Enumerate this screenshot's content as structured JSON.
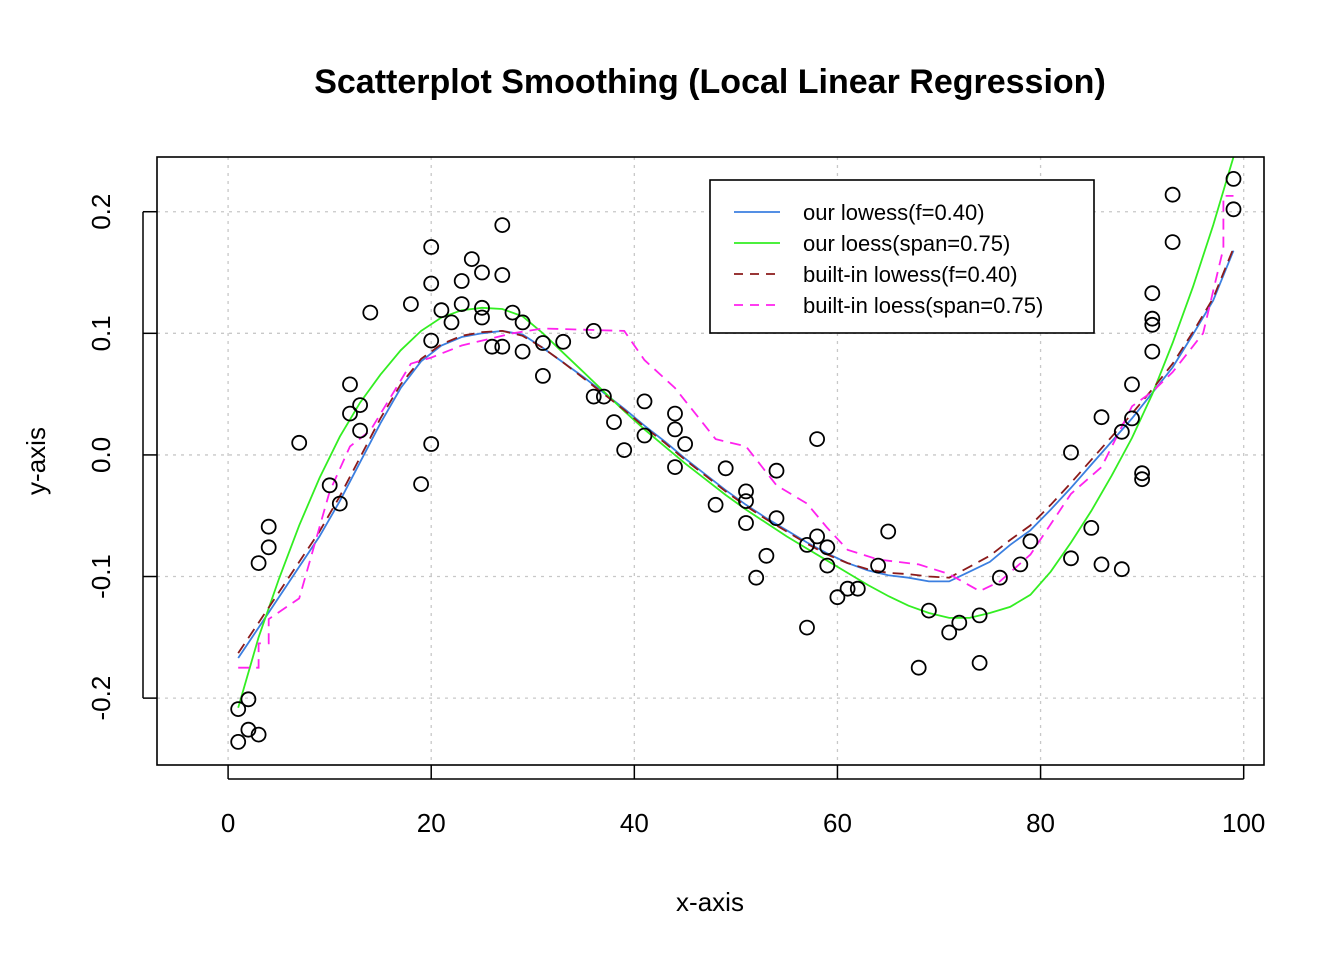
{
  "chart_data": {
    "type": "scatter",
    "title": "Scatterplot Smoothing (Local Linear Regression)",
    "xlabel": "x-axis",
    "ylabel": "y-axis",
    "xlim": [
      -7,
      102
    ],
    "ylim": [
      -0.255,
      0.245
    ],
    "xticks": [
      0,
      20,
      40,
      60,
      80,
      100
    ],
    "xtick_labels": [
      "0",
      "20",
      "40",
      "60",
      "80",
      "100"
    ],
    "yticks": [
      -0.2,
      -0.1,
      0.0,
      0.1,
      0.2
    ],
    "ytick_labels": [
      "-0.2",
      "-0.1",
      "0.0",
      "0.1",
      "0.2"
    ],
    "grid": true,
    "legend_position": "top-right",
    "points": [
      {
        "x": 1,
        "y": -0.209
      },
      {
        "x": 1,
        "y": -0.236
      },
      {
        "x": 2,
        "y": -0.201
      },
      {
        "x": 2,
        "y": -0.226
      },
      {
        "x": 3,
        "y": -0.23
      },
      {
        "x": 3,
        "y": -0.089
      },
      {
        "x": 4,
        "y": -0.059
      },
      {
        "x": 4,
        "y": -0.076
      },
      {
        "x": 7,
        "y": 0.01
      },
      {
        "x": 10,
        "y": -0.025
      },
      {
        "x": 11,
        "y": -0.04
      },
      {
        "x": 12,
        "y": 0.058
      },
      {
        "x": 12,
        "y": 0.034
      },
      {
        "x": 13,
        "y": 0.041
      },
      {
        "x": 13,
        "y": 0.02
      },
      {
        "x": 14,
        "y": 0.117
      },
      {
        "x": 18,
        "y": 0.124
      },
      {
        "x": 19,
        "y": -0.024
      },
      {
        "x": 20,
        "y": 0.171
      },
      {
        "x": 20,
        "y": 0.141
      },
      {
        "x": 20,
        "y": 0.094
      },
      {
        "x": 20,
        "y": 0.009
      },
      {
        "x": 21,
        "y": 0.119
      },
      {
        "x": 22,
        "y": 0.109
      },
      {
        "x": 23,
        "y": 0.143
      },
      {
        "x": 23,
        "y": 0.124
      },
      {
        "x": 24,
        "y": 0.161
      },
      {
        "x": 25,
        "y": 0.15
      },
      {
        "x": 25,
        "y": 0.121
      },
      {
        "x": 25,
        "y": 0.113
      },
      {
        "x": 26,
        "y": 0.089
      },
      {
        "x": 27,
        "y": 0.189
      },
      {
        "x": 27,
        "y": 0.148
      },
      {
        "x": 27,
        "y": 0.089
      },
      {
        "x": 28,
        "y": 0.117
      },
      {
        "x": 29,
        "y": 0.109
      },
      {
        "x": 29,
        "y": 0.085
      },
      {
        "x": 31,
        "y": 0.092
      },
      {
        "x": 31,
        "y": 0.065
      },
      {
        "x": 33,
        "y": 0.093
      },
      {
        "x": 36,
        "y": 0.102
      },
      {
        "x": 36,
        "y": 0.048
      },
      {
        "x": 37,
        "y": 0.048
      },
      {
        "x": 38,
        "y": 0.027
      },
      {
        "x": 39,
        "y": 0.004
      },
      {
        "x": 41,
        "y": 0.044
      },
      {
        "x": 41,
        "y": 0.016
      },
      {
        "x": 44,
        "y": 0.034
      },
      {
        "x": 44,
        "y": 0.021
      },
      {
        "x": 44,
        "y": -0.01
      },
      {
        "x": 45,
        "y": 0.009
      },
      {
        "x": 48,
        "y": -0.041
      },
      {
        "x": 49,
        "y": -0.011
      },
      {
        "x": 51,
        "y": -0.03
      },
      {
        "x": 51,
        "y": -0.038
      },
      {
        "x": 51,
        "y": -0.056
      },
      {
        "x": 52,
        "y": -0.101
      },
      {
        "x": 53,
        "y": -0.083
      },
      {
        "x": 54,
        "y": -0.013
      },
      {
        "x": 54,
        "y": -0.052
      },
      {
        "x": 57,
        "y": -0.074
      },
      {
        "x": 57,
        "y": -0.142
      },
      {
        "x": 58,
        "y": 0.013
      },
      {
        "x": 58,
        "y": -0.067
      },
      {
        "x": 59,
        "y": -0.076
      },
      {
        "x": 59,
        "y": -0.091
      },
      {
        "x": 60,
        "y": -0.117
      },
      {
        "x": 61,
        "y": -0.11
      },
      {
        "x": 62,
        "y": -0.11
      },
      {
        "x": 64,
        "y": -0.091
      },
      {
        "x": 65,
        "y": -0.063
      },
      {
        "x": 68,
        "y": -0.175
      },
      {
        "x": 69,
        "y": -0.128
      },
      {
        "x": 71,
        "y": -0.146
      },
      {
        "x": 72,
        "y": -0.138
      },
      {
        "x": 74,
        "y": -0.132
      },
      {
        "x": 74,
        "y": -0.171
      },
      {
        "x": 76,
        "y": -0.101
      },
      {
        "x": 78,
        "y": -0.09
      },
      {
        "x": 79,
        "y": -0.071
      },
      {
        "x": 83,
        "y": 0.002
      },
      {
        "x": 83,
        "y": -0.085
      },
      {
        "x": 85,
        "y": -0.06
      },
      {
        "x": 86,
        "y": 0.031
      },
      {
        "x": 86,
        "y": -0.09
      },
      {
        "x": 88,
        "y": 0.019
      },
      {
        "x": 88,
        "y": -0.094
      },
      {
        "x": 89,
        "y": 0.058
      },
      {
        "x": 89,
        "y": 0.03
      },
      {
        "x": 90,
        "y": -0.015
      },
      {
        "x": 90,
        "y": -0.02
      },
      {
        "x": 91,
        "y": 0.133
      },
      {
        "x": 91,
        "y": 0.112
      },
      {
        "x": 91,
        "y": 0.107
      },
      {
        "x": 91,
        "y": 0.085
      },
      {
        "x": 93,
        "y": 0.214
      },
      {
        "x": 93,
        "y": 0.175
      },
      {
        "x": 99,
        "y": 0.227
      },
      {
        "x": 99,
        "y": 0.202
      }
    ],
    "series": [
      {
        "name": "our lowess(f=0.40)",
        "color": "#3b7fe0",
        "dash": "solid",
        "x": [
          1,
          3,
          5,
          7,
          9,
          11,
          13,
          15,
          17,
          19,
          21,
          23,
          25,
          27,
          29,
          31,
          33,
          35,
          37,
          39,
          41,
          43,
          45,
          47,
          49,
          51,
          53,
          55,
          57,
          59,
          61,
          63,
          65,
          67,
          69,
          71,
          73,
          75,
          77,
          79,
          81,
          83,
          85,
          87,
          89,
          91,
          93,
          95,
          97,
          99
        ],
        "y": [
          -0.167,
          -0.142,
          -0.117,
          -0.092,
          -0.067,
          -0.038,
          -0.006,
          0.026,
          0.055,
          0.077,
          0.09,
          0.097,
          0.1,
          0.102,
          0.099,
          0.088,
          0.076,
          0.064,
          0.051,
          0.038,
          0.024,
          0.011,
          -0.003,
          -0.016,
          -0.029,
          -0.041,
          -0.052,
          -0.062,
          -0.072,
          -0.081,
          -0.089,
          -0.095,
          -0.099,
          -0.101,
          -0.104,
          -0.104,
          -0.096,
          -0.088,
          -0.074,
          -0.062,
          -0.045,
          -0.027,
          -0.008,
          0.011,
          0.03,
          0.051,
          0.072,
          0.099,
          0.127,
          0.168
        ]
      },
      {
        "name": "our loess(span=0.75)",
        "color": "#33ee22",
        "dash": "solid",
        "x": [
          1,
          3,
          5,
          7,
          9,
          11,
          13,
          15,
          17,
          19,
          21,
          23,
          25,
          27,
          29,
          31,
          33,
          35,
          37,
          39,
          41,
          43,
          45,
          47,
          49,
          51,
          53,
          55,
          57,
          59,
          61,
          63,
          65,
          67,
          69,
          71,
          73,
          75,
          77,
          79,
          81,
          83,
          85,
          87,
          89,
          91,
          93,
          95,
          97,
          99
        ],
        "y": [
          -0.208,
          -0.15,
          -0.102,
          -0.058,
          -0.019,
          0.015,
          0.043,
          0.066,
          0.086,
          0.102,
          0.113,
          0.119,
          0.121,
          0.12,
          0.114,
          0.1,
          0.084,
          0.068,
          0.052,
          0.036,
          0.021,
          0.007,
          -0.007,
          -0.02,
          -0.033,
          -0.045,
          -0.056,
          -0.067,
          -0.077,
          -0.087,
          -0.097,
          -0.107,
          -0.116,
          -0.124,
          -0.13,
          -0.134,
          -0.134,
          -0.13,
          -0.125,
          -0.115,
          -0.096,
          -0.072,
          -0.046,
          -0.017,
          0.014,
          0.05,
          0.092,
          0.138,
          0.189,
          0.245
        ]
      },
      {
        "name": "built-in lowess(f=0.40)",
        "color": "#8b1a1a",
        "dash": "dashed",
        "x": [
          1,
          3,
          5,
          7,
          9,
          11,
          13,
          15,
          17,
          19,
          21,
          23,
          25,
          27,
          29,
          31,
          33,
          35,
          37,
          39,
          41,
          43,
          45,
          47,
          49,
          51,
          53,
          55,
          57,
          59,
          61,
          63,
          65,
          67,
          69,
          71,
          73,
          75,
          77,
          79,
          81,
          83,
          85,
          87,
          89,
          91,
          93,
          95,
          97,
          99
        ],
        "y": [
          -0.163,
          -0.138,
          -0.113,
          -0.088,
          -0.063,
          -0.034,
          -0.002,
          0.03,
          0.058,
          0.079,
          0.091,
          0.098,
          0.101,
          0.102,
          0.098,
          0.088,
          0.076,
          0.063,
          0.05,
          0.037,
          0.023,
          0.01,
          -0.004,
          -0.017,
          -0.03,
          -0.042,
          -0.053,
          -0.063,
          -0.073,
          -0.082,
          -0.089,
          -0.094,
          -0.097,
          -0.098,
          -0.1,
          -0.101,
          -0.092,
          -0.083,
          -0.07,
          -0.058,
          -0.041,
          -0.023,
          -0.004,
          0.015,
          0.034,
          0.054,
          0.075,
          0.101,
          0.129,
          0.17
        ]
      },
      {
        "name": "built-in loess(span=0.75)",
        "color": "#ff22ee",
        "dash": "dashed",
        "x": [
          1,
          3,
          3,
          4,
          4,
          7,
          7,
          10,
          10,
          12,
          12,
          14,
          14,
          18,
          18,
          20,
          20,
          23,
          23,
          27,
          27,
          28,
          28,
          31,
          31,
          39,
          39,
          41,
          41,
          44,
          44,
          48,
          48,
          51,
          51,
          54,
          54,
          57,
          57,
          59,
          59,
          61,
          61,
          64,
          64,
          68,
          68,
          71,
          71,
          74,
          74,
          76,
          76,
          79,
          79,
          83,
          83,
          86,
          86,
          89,
          89,
          91,
          91,
          93,
          93,
          96,
          96,
          98,
          98,
          99
        ],
        "y": [
          -0.175,
          -0.175,
          -0.155,
          -0.155,
          -0.135,
          -0.118,
          -0.118,
          -0.03,
          -0.03,
          0.007,
          0.007,
          0.02,
          0.02,
          0.075,
          0.075,
          0.08,
          0.08,
          0.09,
          0.09,
          0.098,
          0.098,
          0.1,
          0.1,
          0.104,
          0.104,
          0.102,
          0.102,
          0.078,
          0.078,
          0.055,
          0.055,
          0.013,
          0.013,
          0.007,
          0.007,
          -0.025,
          -0.025,
          -0.04,
          -0.04,
          -0.06,
          -0.06,
          -0.078,
          -0.078,
          -0.086,
          -0.086,
          -0.09,
          -0.09,
          -0.098,
          -0.098,
          -0.112,
          -0.112,
          -0.104,
          -0.104,
          -0.082,
          -0.082,
          -0.032,
          -0.032,
          -0.01,
          -0.01,
          0.04,
          0.04,
          0.052,
          0.052,
          0.068,
          0.068,
          0.1,
          0.1,
          0.17,
          0.213,
          0.213
        ]
      }
    ]
  }
}
